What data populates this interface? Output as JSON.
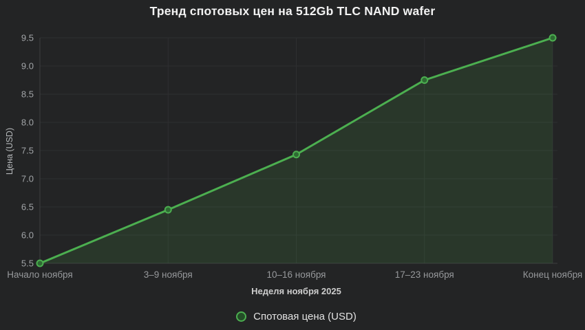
{
  "title": "Тренд спотовых цен на 512Gb TLC NAND wafer",
  "chart_data": {
    "type": "line",
    "title": "Тренд спотовых цен на 512Gb TLC NAND wafer",
    "categories": [
      "Начало ноября",
      "3–9 ноября",
      "10–16 ноября",
      "17–23 ноября",
      "Конец ноября"
    ],
    "series": [
      {
        "name": "Спотовая цена (USD)",
        "values": [
          5.5,
          6.45,
          7.43,
          8.75,
          9.5
        ]
      }
    ],
    "xlabel": "Неделя ноября 2025",
    "ylabel": "Цена (USD)",
    "ylim": [
      5.5,
      9.5
    ],
    "yticks": [
      5.5,
      6.0,
      6.5,
      7.0,
      7.5,
      8.0,
      8.5,
      9.0,
      9.5
    ],
    "grid": true,
    "legend_position": "bottom",
    "colors": {
      "background": "#232425",
      "line": "#4caf50",
      "area_fill": "rgba(76,175,80,0.14)",
      "marker_fill": "#2e6b33",
      "grid": "#2e2f31",
      "axis": "#3d3e40",
      "y_tick_label": "#a2a5a8",
      "x_tick_label": "#97999c",
      "title": "#f2f2f2"
    }
  },
  "legend": {
    "label": "Спотовая цена (USD)"
  }
}
